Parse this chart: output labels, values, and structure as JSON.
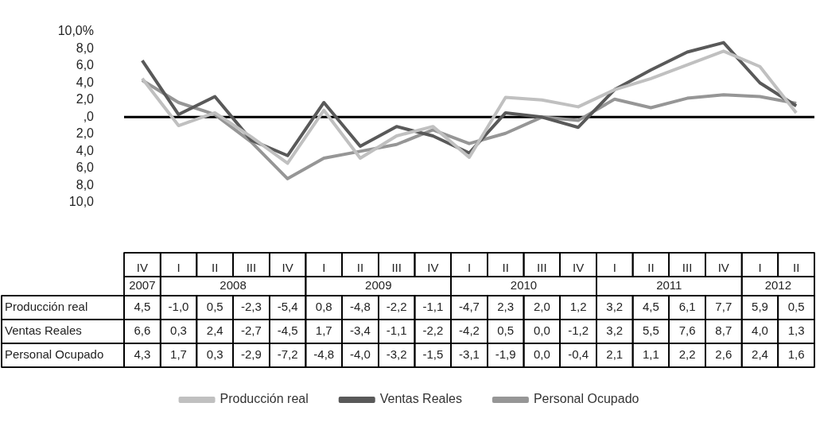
{
  "chart_data": {
    "type": "line",
    "categories": [
      "IV",
      "I",
      "II",
      "III",
      "IV",
      "I",
      "II",
      "III",
      "IV",
      "I",
      "II",
      "III",
      "IV",
      "I",
      "II",
      "III",
      "IV",
      "I",
      "II"
    ],
    "series": [
      {
        "name": "Producción real",
        "color": "#c0c0c0",
        "values": [
          4.5,
          -1.0,
          0.5,
          -2.3,
          -5.4,
          0.8,
          -4.8,
          -2.2,
          -1.1,
          -4.7,
          2.3,
          2.0,
          1.2,
          3.2,
          4.5,
          6.1,
          7.7,
          5.9,
          0.5
        ],
        "value_labels": [
          "4,5",
          "-1,0",
          "0,5",
          "-2,3",
          "-5,4",
          "0,8",
          "-4,8",
          "-2,2",
          "-1,1",
          "-4,7",
          "2,3",
          "2,0",
          "1,2",
          "3,2",
          "4,5",
          "6,1",
          "7,7",
          "5,9",
          "0,5"
        ]
      },
      {
        "name": "Ventas Reales",
        "color": "#595959",
        "values": [
          6.6,
          0.3,
          2.4,
          -2.7,
          -4.5,
          1.7,
          -3.4,
          -1.1,
          -2.2,
          -4.2,
          0.5,
          0.0,
          -1.2,
          3.2,
          5.5,
          7.6,
          8.7,
          4.0,
          1.3
        ],
        "value_labels": [
          "6,6",
          "0,3",
          "2,4",
          "-2,7",
          "-4,5",
          "1,7",
          "-3,4",
          "-1,1",
          "-2,2",
          "-4,2",
          "0,5",
          "0,0",
          "-1,2",
          "3,2",
          "5,5",
          "7,6",
          "8,7",
          "4,0",
          "1,3"
        ]
      },
      {
        "name": "Personal Ocupado",
        "color": "#969696",
        "values": [
          4.3,
          1.7,
          0.3,
          -2.9,
          -7.2,
          -4.8,
          -4.0,
          -3.2,
          -1.5,
          -3.1,
          -1.9,
          0.0,
          -0.4,
          2.1,
          1.1,
          2.2,
          2.6,
          2.4,
          1.6
        ],
        "value_labels": [
          "4,3",
          "1,7",
          "0,3",
          "-2,9",
          "-7,2",
          "-4,8",
          "-4,0",
          "-3,2",
          "-1,5",
          "-3,1",
          "-1,9",
          "0,0",
          "-0,4",
          "2,1",
          "1,1",
          "2,2",
          "2,6",
          "2,4",
          "1,6"
        ]
      }
    ],
    "ylim": [
      -10,
      10
    ],
    "yticks": [
      {
        "value": 10,
        "label": "10,0%"
      },
      {
        "value": 8,
        "label": "8,0"
      },
      {
        "value": 6,
        "label": "6,0"
      },
      {
        "value": 4,
        "label": "4,0"
      },
      {
        "value": 2,
        "label": "2,0"
      },
      {
        "value": 0,
        "label": ",0"
      },
      {
        "value": -2,
        "label": "2,0"
      },
      {
        "value": -4,
        "label": "4,0"
      },
      {
        "value": -6,
        "label": "6,0"
      },
      {
        "value": -8,
        "label": "8,0"
      },
      {
        "value": -10,
        "label": "10,0"
      }
    ],
    "ref_lines": [
      {
        "axis": "y",
        "value": 0,
        "color": "#000000"
      }
    ],
    "annotations": [
      "2007",
      "2008",
      "2009",
      "2010",
      "2011",
      "2012"
    ],
    "grid": false,
    "legend": "bottom",
    "marker": "none",
    "line_style": "solid"
  }
}
